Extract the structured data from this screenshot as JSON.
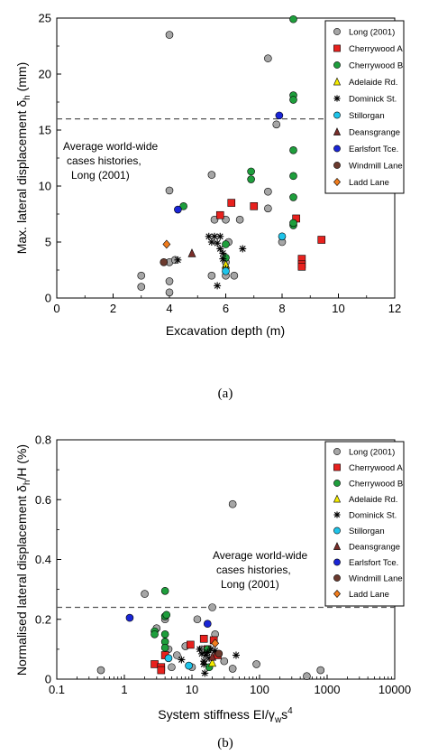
{
  "chart_data": [
    {
      "type": "scatter",
      "panel_label": "(a)",
      "xlabel": "Excavation depth (m)",
      "ylabel_main": "Max. lateral displacement δ",
      "ylabel_sub": "h",
      "ylabel_tail": " (mm)",
      "xlim": [
        0,
        12
      ],
      "ylim": [
        0,
        25
      ],
      "x_scale": "linear",
      "x_ticks": [
        0,
        2,
        4,
        6,
        8,
        10,
        12
      ],
      "y_ticks": [
        0,
        5,
        10,
        15,
        20,
        25
      ],
      "reference_line": {
        "y": 16,
        "style": "dashed"
      },
      "annotation": [
        "Average world-wide",
        "cases histories,",
        "Long (2001)"
      ],
      "legend_position": "top-right",
      "series": [
        {
          "name": "Long (2001)",
          "marker": "circle",
          "color": "#a6a6a6",
          "x": [
            3.0,
            3.0,
            4.0,
            4.0,
            4.0,
            4.0,
            4.0,
            4.2,
            5.5,
            5.5,
            5.6,
            6.0,
            6.0,
            6.0,
            6.1,
            6.3,
            6.5,
            7.5,
            7.5,
            7.5,
            7.8,
            8.0
          ],
          "y": [
            1.0,
            2.0,
            23.5,
            9.6,
            3.2,
            0.5,
            1.5,
            3.4,
            11.0,
            2.0,
            7.0,
            7.0,
            3.2,
            2.0,
            5.0,
            2.0,
            7.0,
            21.4,
            9.5,
            8.0,
            15.5,
            5.0
          ]
        },
        {
          "name": "Cherrywood A",
          "marker": "square",
          "color": "#e8211e",
          "x": [
            5.8,
            6.2,
            7.0,
            8.5,
            8.7,
            8.7,
            8.7,
            9.4
          ],
          "y": [
            7.4,
            8.5,
            8.2,
            7.1,
            3.5,
            3.0,
            2.8,
            5.2
          ]
        },
        {
          "name": "Cherrywood B",
          "marker": "circle",
          "color": "#1e9e3c",
          "x": [
            4.5,
            6.0,
            6.0,
            6.9,
            6.9,
            8.4,
            8.4,
            8.4,
            8.4,
            8.4,
            8.4,
            8.4,
            8.4
          ],
          "y": [
            8.2,
            4.8,
            3.6,
            11.3,
            10.6,
            24.9,
            18.1,
            17.7,
            13.2,
            10.9,
            9.0,
            6.5,
            6.7
          ]
        },
        {
          "name": "Adelaide Rd.",
          "marker": "triangle",
          "color": "#f5ec00",
          "x": [
            6.0
          ],
          "y": [
            3.0
          ]
        },
        {
          "name": "Dominick St.",
          "marker": "asterisk",
          "color": "#000000",
          "x": [
            4.3,
            5.4,
            5.5,
            5.6,
            5.7,
            5.8,
            5.8,
            5.9,
            5.9,
            6.0,
            5.7,
            6.6
          ],
          "y": [
            3.4,
            5.5,
            5.0,
            5.5,
            4.9,
            5.5,
            4.4,
            4.0,
            3.5,
            2.6,
            1.1,
            4.4
          ]
        },
        {
          "name": "Stillorgan",
          "marker": "circle",
          "color": "#1ec4ea",
          "x": [
            6.0,
            8.0
          ],
          "y": [
            2.4,
            5.5
          ]
        },
        {
          "name": "Deansgrange",
          "marker": "triangle",
          "color": "#7a2e2a",
          "x": [
            4.8
          ],
          "y": [
            4.0
          ]
        },
        {
          "name": "Earlsfort Tce.",
          "marker": "circle",
          "color": "#1a25d6",
          "x": [
            4.3,
            7.9
          ],
          "y": [
            7.9,
            16.3
          ]
        },
        {
          "name": "Windmill Lane",
          "marker": "circle",
          "color": "#6b3a2e",
          "x": [
            3.8
          ],
          "y": [
            3.2
          ]
        },
        {
          "name": "Ladd Lane",
          "marker": "diamond",
          "color": "#f07c1c",
          "x": [
            3.9
          ],
          "y": [
            4.8
          ]
        }
      ]
    },
    {
      "type": "scatter",
      "panel_label": "(b)",
      "xlabel_main": "System stiffness EI/γ",
      "xlabel_sub": "w",
      "xlabel_tail": "s",
      "xlabel_sup": "4",
      "ylabel_main": "Normalised lateral displacement δ",
      "ylabel_sub": "h",
      "ylabel_tail": "/H (%)",
      "xlim": [
        0.1,
        10000
      ],
      "ylim": [
        0,
        0.8
      ],
      "x_scale": "log",
      "x_ticks": [
        0.1,
        1,
        10,
        100,
        1000,
        10000
      ],
      "x_tick_labels": [
        "0.1",
        "1",
        "10",
        "100",
        "1000",
        "10000"
      ],
      "y_ticks": [
        0,
        0.2,
        0.4,
        0.6,
        0.8
      ],
      "y_tick_labels": [
        "0",
        "0.2",
        "0.4",
        "0.6",
        "0.8"
      ],
      "reference_line": {
        "y": 0.24,
        "style": "dashed"
      },
      "annotation": [
        "Average world-wide",
        "cases histories,",
        "Long (2001)"
      ],
      "legend_position": "top-right",
      "series": [
        {
          "name": "Long (2001)",
          "marker": "circle",
          "color": "#a6a6a6",
          "x": [
            0.45,
            2.0,
            3.0,
            4.0,
            4.5,
            5.0,
            6.0,
            8.0,
            10.0,
            12.0,
            14.0,
            20.0,
            22.0,
            30.0,
            40.0,
            40.0,
            90.0,
            500.0,
            800.0
          ],
          "y": [
            0.03,
            0.285,
            0.17,
            0.2,
            0.1,
            0.04,
            0.08,
            0.11,
            0.04,
            0.2,
            0.1,
            0.24,
            0.15,
            0.06,
            0.035,
            0.585,
            0.05,
            0.01,
            0.03
          ]
        },
        {
          "name": "Cherrywood A",
          "marker": "square",
          "color": "#e8211e",
          "x": [
            2.8,
            3.5,
            3.5,
            4.0,
            9.5,
            15.0,
            17.0,
            21.0,
            24.0
          ],
          "y": [
            0.05,
            0.04,
            0.03,
            0.08,
            0.115,
            0.135,
            0.1,
            0.13,
            0.08
          ]
        },
        {
          "name": "Cherrywood B",
          "marker": "circle",
          "color": "#1e9e3c",
          "x": [
            2.8,
            2.8,
            4.0,
            4.0,
            4.0,
            4.0,
            4.0,
            4.2,
            17.0,
            18.0
          ],
          "y": [
            0.16,
            0.15,
            0.295,
            0.21,
            0.15,
            0.125,
            0.105,
            0.215,
            0.1,
            0.04
          ]
        },
        {
          "name": "Adelaide Rd.",
          "marker": "triangle",
          "color": "#f5ec00",
          "x": [
            20.0
          ],
          "y": [
            0.055
          ]
        },
        {
          "name": "Dominick St.",
          "marker": "asterisk",
          "color": "#000000",
          "x": [
            7.0,
            13.0,
            14.0,
            15.0,
            15.5,
            16.0,
            17.0,
            18.0,
            19.0,
            15.0,
            22.0,
            45.0
          ],
          "y": [
            0.065,
            0.1,
            0.085,
            0.06,
            0.02,
            0.08,
            0.09,
            0.07,
            0.1,
            0.05,
            0.095,
            0.08
          ]
        },
        {
          "name": "Stillorgan",
          "marker": "circle",
          "color": "#1ec4ea",
          "x": [
            4.5,
            9.0
          ],
          "y": [
            0.07,
            0.045
          ]
        },
        {
          "name": "Deansgrange",
          "marker": "triangle",
          "color": "#7a2e2a",
          "x": [
            20.0
          ],
          "y": [
            0.075
          ]
        },
        {
          "name": "Earlsfort Tce.",
          "marker": "circle",
          "color": "#1a25d6",
          "x": [
            1.2,
            17.0
          ],
          "y": [
            0.205,
            0.185
          ]
        },
        {
          "name": "Windmill Lane",
          "marker": "circle",
          "color": "#6b3a2e",
          "x": [
            25.0
          ],
          "y": [
            0.085
          ]
        },
        {
          "name": "Ladd Lane",
          "marker": "diamond",
          "color": "#f07c1c",
          "x": [
            22.0
          ],
          "y": [
            0.12
          ]
        }
      ]
    }
  ]
}
